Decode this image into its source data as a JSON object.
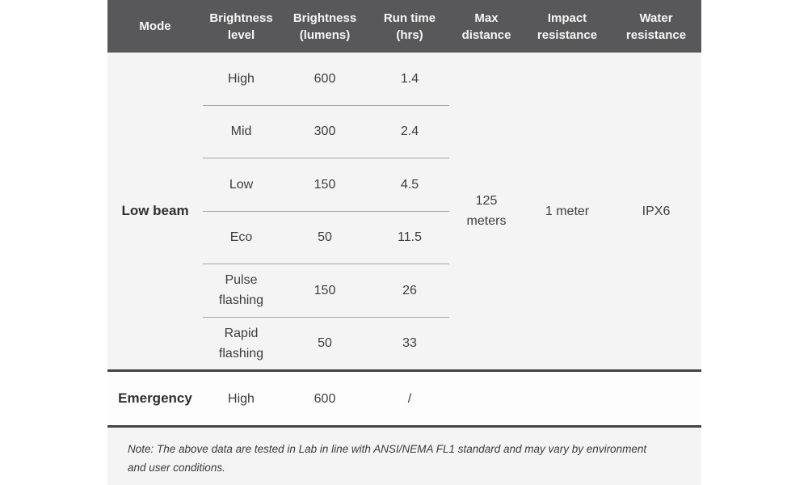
{
  "colors": {
    "page_bg": "#ffffff",
    "table_bg": "#f4f4f5",
    "header_bg": "#58585a",
    "header_text": "#f6f6f6",
    "body_text": "#3d3d3f",
    "emergency_row_bg": "#fdfdfd",
    "thin_divider": "#a6a6a6",
    "thick_divider": "#434345"
  },
  "table": {
    "headers": [
      "Mode",
      "Brightness level",
      "Brightness (lumens)",
      "Run time (hrs)",
      "Max distance",
      "Impact resistance",
      "Water resistance"
    ],
    "low_beam": {
      "mode_label": "Low beam",
      "rows": [
        {
          "level": "High",
          "lumens": "600",
          "run_time": "1.4"
        },
        {
          "level": "Mid",
          "lumens": "300",
          "run_time": "2.4"
        },
        {
          "level": "Low",
          "lumens": "150",
          "run_time": "4.5"
        },
        {
          "level": "Eco",
          "lumens": "50",
          "run_time": "11.5"
        },
        {
          "level": "Pulse flashing",
          "lumens": "150",
          "run_time": "26"
        },
        {
          "level": "Rapid flashing",
          "lumens": "50",
          "run_time": "33"
        }
      ],
      "max_distance": "125 meters",
      "impact_resistance": "1 meter",
      "water_resistance": "IPX6"
    },
    "emergency": {
      "mode_label": "Emergency",
      "level": "High",
      "lumens": "600",
      "run_time": "/"
    },
    "note": {
      "line1": "Note: The above data are tested in Lab in line with ANSI/NEMA FL1 standard and may vary by environment",
      "line2": "and user conditions."
    }
  },
  "chart_data": {
    "type": "table",
    "title": "Light modes specification table",
    "columns": [
      "Mode",
      "Brightness level",
      "Brightness (lumens)",
      "Run time (hrs)",
      "Max distance",
      "Impact resistance",
      "Water resistance"
    ],
    "rows": [
      [
        "Low beam",
        "High",
        600,
        1.4,
        "125 meters",
        "1 meter",
        "IPX6"
      ],
      [
        "Low beam",
        "Mid",
        300,
        2.4,
        "125 meters",
        "1 meter",
        "IPX6"
      ],
      [
        "Low beam",
        "Low",
        150,
        4.5,
        "125 meters",
        "1 meter",
        "IPX6"
      ],
      [
        "Low beam",
        "Eco",
        50,
        11.5,
        "125 meters",
        "1 meter",
        "IPX6"
      ],
      [
        "Low beam",
        "Pulse flashing",
        150,
        26,
        "125 meters",
        "1 meter",
        "IPX6"
      ],
      [
        "Low beam",
        "Rapid flashing",
        50,
        33,
        "125 meters",
        "1 meter",
        "IPX6"
      ],
      [
        "Emergency",
        "High",
        600,
        "/",
        "",
        "",
        ""
      ]
    ],
    "merged_cells_note": "Max distance, Impact resistance and Water resistance are merged across all Low beam rows",
    "footnote": "Note: The above data are tested in Lab in line with ANSI/NEMA FL1 standard and may vary by environment and user conditions."
  }
}
